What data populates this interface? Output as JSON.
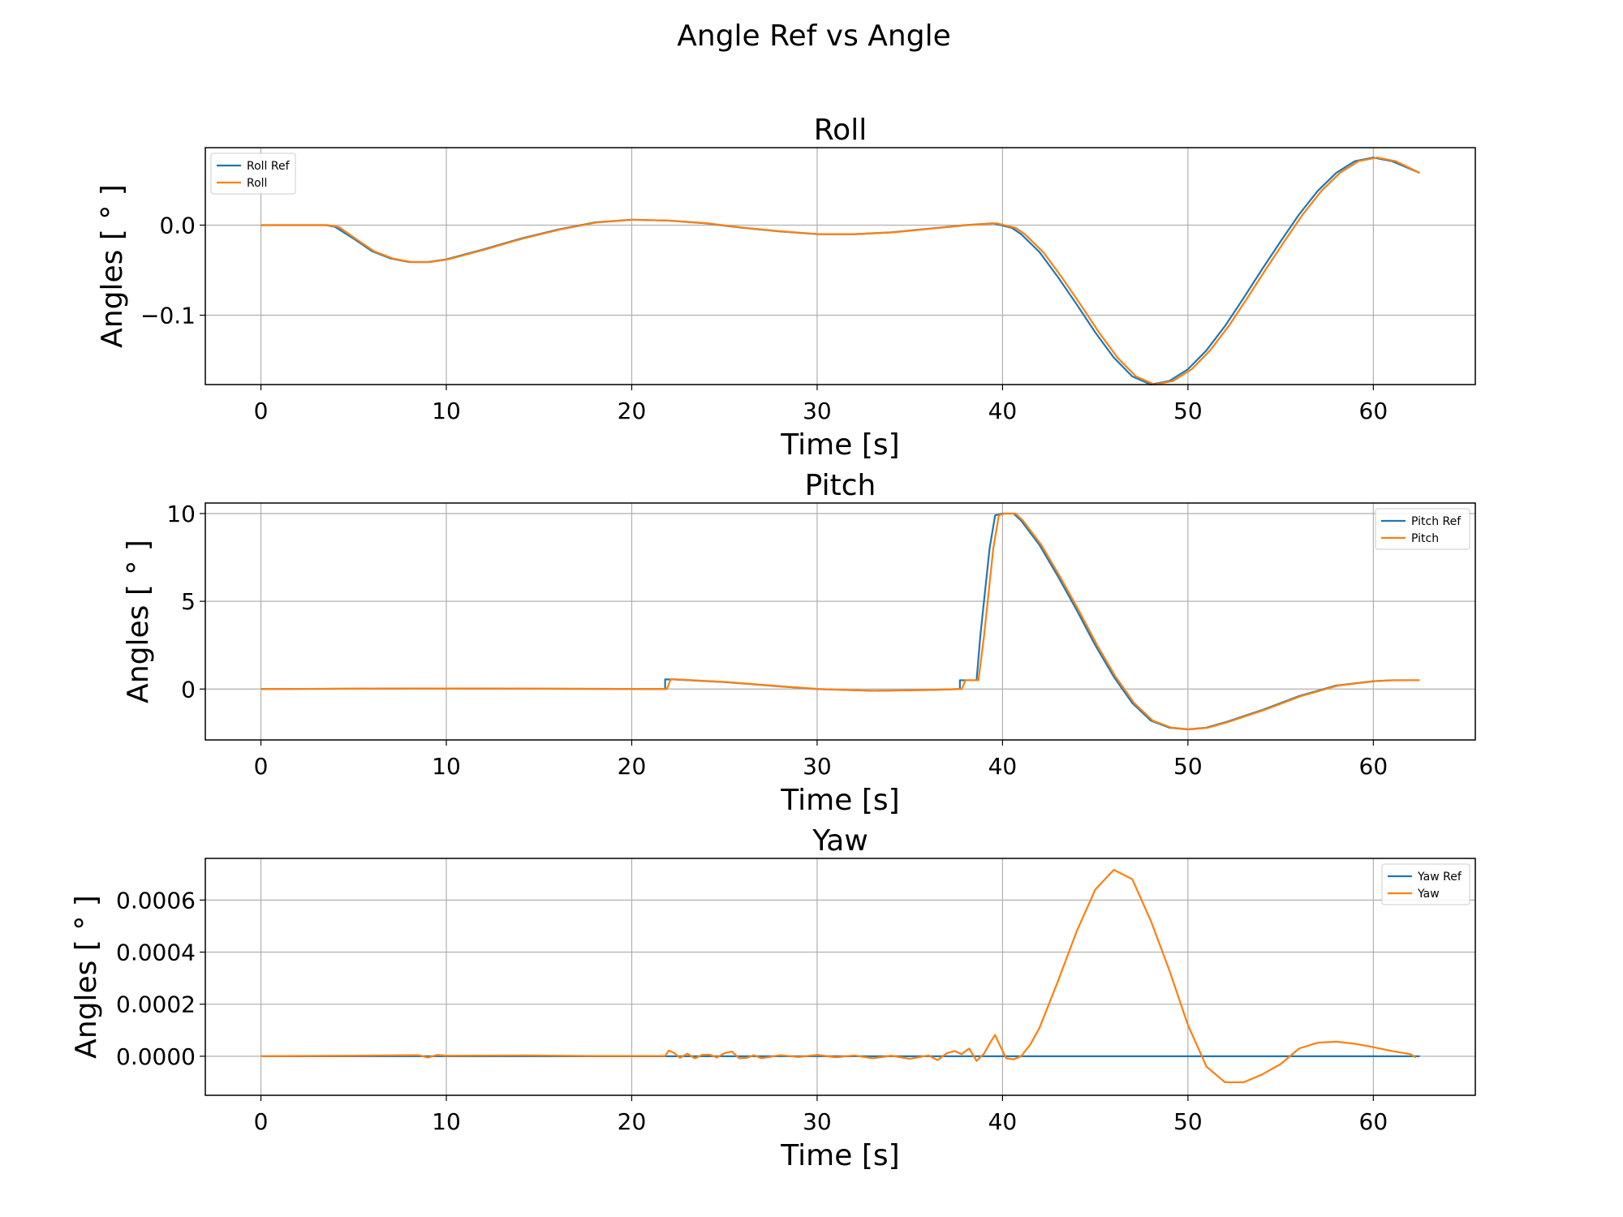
{
  "title": "Angle Ref vs Angle",
  "colors": {
    "ref": "#1f77b4",
    "actual": "#ff7f0e",
    "grid": "#b0b0b0"
  },
  "chart_data": [
    {
      "type": "line",
      "title": "Roll",
      "xlabel": "Time [s]",
      "ylabel": "Angles [ ° ]",
      "xlim": [
        -3,
        65.5
      ],
      "ylim": [
        -0.177,
        0.086
      ],
      "xticks": [
        0,
        10,
        20,
        30,
        40,
        50,
        60
      ],
      "xtick_labels": [
        "0",
        "10",
        "20",
        "30",
        "40",
        "50",
        "60"
      ],
      "yticks": [
        0.0,
        -0.1
      ],
      "ytick_labels": [
        "0.0",
        "−0.1"
      ],
      "grid": true,
      "legend_position": "upper left",
      "series": [
        {
          "name": "Roll Ref",
          "color": "#1f77b4",
          "x": [
            0,
            3,
            3.5,
            4,
            5,
            6,
            7,
            8,
            9,
            10,
            12,
            14,
            16,
            18,
            20,
            22,
            24,
            26,
            28,
            30,
            32,
            34,
            36,
            38,
            39.5,
            40.5,
            41,
            42,
            43,
            44,
            45,
            46,
            47,
            48,
            49,
            50,
            51,
            52,
            53,
            54,
            55,
            56,
            57,
            58,
            59,
            60,
            61,
            62.5
          ],
          "y": [
            0,
            0,
            0,
            -0.002,
            -0.015,
            -0.029,
            -0.037,
            -0.041,
            -0.041,
            -0.038,
            -0.027,
            -0.015,
            -0.005,
            0.003,
            0.006,
            0.005,
            0.002,
            -0.003,
            -0.007,
            -0.01,
            -0.01,
            -0.008,
            -0.004,
            0.0,
            0.002,
            -0.003,
            -0.01,
            -0.03,
            -0.058,
            -0.088,
            -0.119,
            -0.147,
            -0.168,
            -0.177,
            -0.173,
            -0.16,
            -0.139,
            -0.112,
            -0.081,
            -0.049,
            -0.018,
            0.012,
            0.038,
            0.058,
            0.071,
            0.075,
            0.071,
            0.058
          ]
        },
        {
          "name": "Roll",
          "color": "#ff7f0e",
          "x": [
            0,
            3,
            3.6,
            4.2,
            5.1,
            6.1,
            7.1,
            8.1,
            9.1,
            10.1,
            12.1,
            14.1,
            16.1,
            18.1,
            20.1,
            22.1,
            24.1,
            26.1,
            28.1,
            30.1,
            32.1,
            34.1,
            36.1,
            38.1,
            39.7,
            40.7,
            41.2,
            42.2,
            43.2,
            44.2,
            45.2,
            46.2,
            47.2,
            48.2,
            49.2,
            50.2,
            51.2,
            52.2,
            53.2,
            54.2,
            55.2,
            56.2,
            57.2,
            58.2,
            59.2,
            60.2,
            61.2,
            62.5
          ],
          "y": [
            0,
            0,
            0,
            -0.002,
            -0.015,
            -0.029,
            -0.037,
            -0.041,
            -0.041,
            -0.038,
            -0.027,
            -0.015,
            -0.005,
            0.003,
            0.006,
            0.005,
            0.002,
            -0.003,
            -0.007,
            -0.01,
            -0.01,
            -0.008,
            -0.004,
            0.0,
            0.002,
            -0.003,
            -0.01,
            -0.03,
            -0.058,
            -0.088,
            -0.119,
            -0.147,
            -0.168,
            -0.177,
            -0.173,
            -0.16,
            -0.139,
            -0.112,
            -0.081,
            -0.049,
            -0.018,
            0.012,
            0.038,
            0.058,
            0.071,
            0.075,
            0.071,
            0.058
          ]
        }
      ]
    },
    {
      "type": "line",
      "title": "Pitch",
      "xlabel": "Time [s]",
      "ylabel": "Angles [ ° ]",
      "xlim": [
        -3,
        65.5
      ],
      "ylim": [
        -2.9,
        10.6
      ],
      "xticks": [
        0,
        10,
        20,
        30,
        40,
        50,
        60
      ],
      "xtick_labels": [
        "0",
        "10",
        "20",
        "30",
        "40",
        "50",
        "60"
      ],
      "yticks": [
        10,
        5,
        0
      ],
      "ytick_labels": [
        "10",
        "5",
        "0"
      ],
      "grid": true,
      "legend_position": "upper right",
      "series": [
        {
          "name": "Pitch Ref",
          "color": "#1f77b4",
          "x": [
            0,
            5,
            10,
            15,
            21.8,
            21.8,
            22.2,
            25,
            28,
            30,
            33,
            36,
            37.7,
            37.7,
            38.6,
            38.8,
            39.3,
            39.6,
            40.0,
            40.6,
            41,
            42,
            43,
            44,
            45,
            46,
            47,
            48,
            49,
            50,
            51,
            52,
            54,
            56,
            58,
            60,
            61,
            62.5
          ],
          "y": [
            0,
            0.02,
            0.03,
            0.02,
            0.0,
            0.55,
            0.55,
            0.4,
            0.15,
            0.0,
            -0.1,
            -0.05,
            0.0,
            0.5,
            0.5,
            3,
            8,
            9.9,
            10,
            10,
            9.6,
            8.2,
            6.4,
            4.5,
            2.5,
            0.7,
            -0.8,
            -1.8,
            -2.2,
            -2.3,
            -2.2,
            -1.9,
            -1.2,
            -0.4,
            0.2,
            0.45,
            0.5,
            0.5
          ]
        },
        {
          "name": "Pitch",
          "color": "#ff7f0e",
          "x": [
            0,
            5,
            10,
            15,
            21.9,
            22.1,
            22.4,
            25.1,
            28.1,
            30.1,
            33.1,
            36.1,
            37.8,
            38.0,
            38.7,
            39.0,
            39.5,
            39.8,
            40.1,
            40.7,
            41.1,
            42.1,
            43.1,
            44.1,
            45.1,
            46.1,
            47.1,
            48.1,
            49.1,
            50.1,
            51.1,
            52.1,
            54.1,
            56.1,
            58.1,
            60.1,
            61.1,
            62.5
          ],
          "y": [
            0,
            0.02,
            0.03,
            0.02,
            0.0,
            0.55,
            0.55,
            0.4,
            0.15,
            0.0,
            -0.1,
            -0.05,
            0.0,
            0.5,
            0.5,
            3,
            8,
            9.9,
            10,
            10,
            9.6,
            8.2,
            6.4,
            4.5,
            2.5,
            0.7,
            -0.8,
            -1.8,
            -2.2,
            -2.3,
            -2.2,
            -1.9,
            -1.2,
            -0.4,
            0.2,
            0.45,
            0.5,
            0.5
          ]
        }
      ]
    },
    {
      "type": "line",
      "title": "Yaw",
      "xlabel": "Time [s]",
      "ylabel": "Angles [ ° ]",
      "xlim": [
        -3,
        65.5
      ],
      "ylim": [
        -0.00015,
        0.00076
      ],
      "xticks": [
        0,
        10,
        20,
        30,
        40,
        50,
        60
      ],
      "xtick_labels": [
        "0",
        "10",
        "20",
        "30",
        "40",
        "50",
        "60"
      ],
      "yticks": [
        0.0006,
        0.0004,
        0.0002,
        0.0
      ],
      "ytick_labels": [
        "0.0006",
        "0.0004",
        "0.0002",
        "0.0000"
      ],
      "grid": true,
      "legend_position": "upper right",
      "series": [
        {
          "name": "Yaw Ref",
          "color": "#1f77b4",
          "x": [
            0,
            62.5
          ],
          "y": [
            0,
            0
          ]
        },
        {
          "name": "Yaw",
          "color": "#ff7f0e",
          "x": [
            0,
            5,
            8.5,
            9,
            9.5,
            10,
            14,
            18,
            21.8,
            22,
            22.3,
            22.6,
            23,
            23.4,
            23.8,
            24.2,
            24.6,
            25,
            25.4,
            25.8,
            26.2,
            26.6,
            27,
            28,
            29,
            30,
            31,
            32,
            33,
            34,
            35,
            36,
            36.5,
            37,
            37.4,
            37.8,
            38.2,
            38.6,
            39,
            39.4,
            39.6,
            39.8,
            40.2,
            40.6,
            41,
            41.5,
            42,
            43,
            44,
            45,
            46,
            47,
            48,
            49,
            50,
            51,
            52,
            53,
            54,
            55,
            56,
            57,
            58,
            59,
            60,
            61,
            62,
            62.3
          ],
          "y": [
            0,
            2e-06,
            4e-06,
            -5e-06,
            5e-06,
            2e-06,
            3e-06,
            1e-06,
            1e-06,
            2.2e-05,
            1.2e-05,
            -6e-06,
            1e-05,
            -8e-06,
            5e-06,
            6e-06,
            -5e-06,
            1.2e-05,
            1.8e-05,
            -8e-06,
            -6e-06,
            4e-06,
            -8e-06,
            4e-06,
            -3e-06,
            5e-06,
            -4e-06,
            3e-06,
            -8e-06,
            2e-06,
            -1e-05,
            3e-06,
            -1.5e-05,
            1.2e-05,
            2e-05,
            8e-06,
            3e-05,
            -1.8e-05,
            1e-05,
            6e-05,
            8.2e-05,
            5e-05,
            -8e-06,
            -1.2e-05,
            0.0,
            4.5e-05,
            0.00011,
            0.00029,
            0.00048,
            0.00064,
            0.000716,
            0.00068,
            0.00052,
            0.00033,
            0.00012,
            -4e-05,
            -0.0001,
            -0.0001,
            -7e-05,
            -3e-05,
            3e-05,
            5.2e-05,
            5.6e-05,
            4.8e-05,
            3.5e-05,
            2e-05,
            8e-06,
            -5e-06
          ]
        }
      ]
    }
  ]
}
